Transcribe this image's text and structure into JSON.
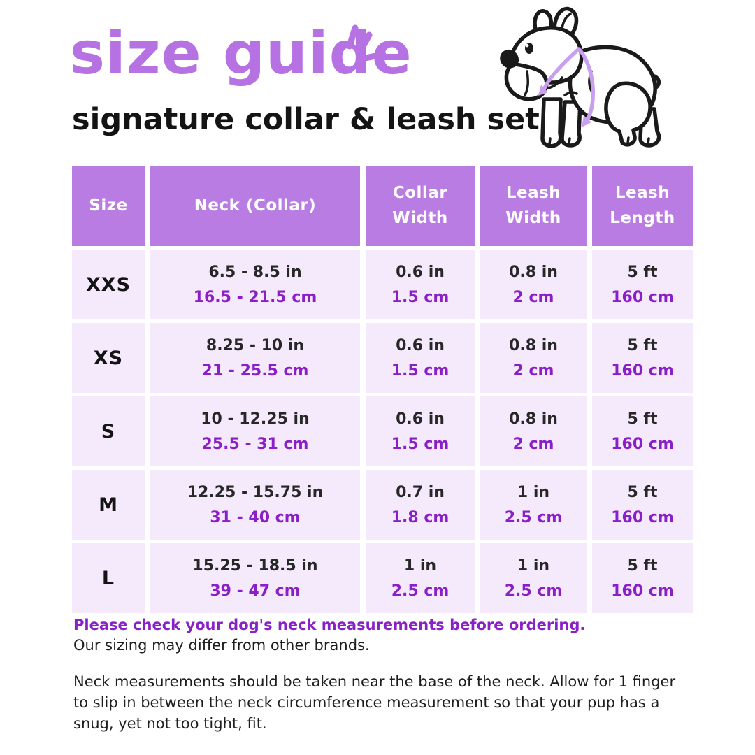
{
  "header": {
    "title": "size guide",
    "subtitle": "signature collar & leash set"
  },
  "icons": {
    "sparkle": "three-ray-sparkle",
    "dog": "french-bulldog-with-neck-measurement-loop"
  },
  "colors": {
    "title_purple": "#b671e3",
    "table_header_purple": "#b87ce2",
    "row_lavender": "#f5e9fc",
    "metric_purple": "#8a1fc7",
    "note_purple": "#8a21c6",
    "text_black": "#141414",
    "measure_arc_purple": "#c9a0ef"
  },
  "table": {
    "columns": [
      "Size",
      "Neck (Collar)",
      "Collar Width",
      "Leash Width",
      "Leash Length"
    ],
    "rows": [
      {
        "size": "XXS",
        "measurements": [
          [
            "6.5 - 8.5 in",
            "16.5 - 21.5 cm"
          ],
          [
            "0.6 in",
            "1.5 cm"
          ],
          [
            "0.8 in",
            "2 cm"
          ],
          [
            "5 ft",
            "160 cm"
          ]
        ]
      },
      {
        "size": "XS",
        "measurements": [
          [
            "8.25 - 10 in",
            "21 - 25.5 cm"
          ],
          [
            "0.6 in",
            "1.5 cm"
          ],
          [
            "0.8 in",
            "2 cm"
          ],
          [
            "5 ft",
            "160 cm"
          ]
        ]
      },
      {
        "size": "S",
        "measurements": [
          [
            "10 - 12.25 in",
            "25.5 - 31 cm"
          ],
          [
            "0.6 in",
            "1.5 cm"
          ],
          [
            "0.8 in",
            "2 cm"
          ],
          [
            "5 ft",
            "160 cm"
          ]
        ]
      },
      {
        "size": "M",
        "measurements": [
          [
            "12.25 - 15.75 in",
            "31 - 40 cm"
          ],
          [
            "0.7 in",
            "1.8 cm"
          ],
          [
            "1 in",
            "2.5 cm"
          ],
          [
            "5 ft",
            "160 cm"
          ]
        ]
      },
      {
        "size": "L",
        "measurements": [
          [
            "15.25 - 18.5 in",
            "39 - 47 cm"
          ],
          [
            "1 in",
            "2.5 cm"
          ],
          [
            "1 in",
            "2.5 cm"
          ],
          [
            "5 ft",
            "160 cm"
          ]
        ]
      }
    ]
  },
  "notes": {
    "highlight": "Please check your dog's neck measurements before ordering.",
    "secondary": "Our sizing may differ from other brands.",
    "paragraph": "Neck measurements should be taken near the base of the neck. Allow for 1 finger to slip in between the neck circumference measurement so that your pup has a snug, yet not too tight, fit."
  }
}
